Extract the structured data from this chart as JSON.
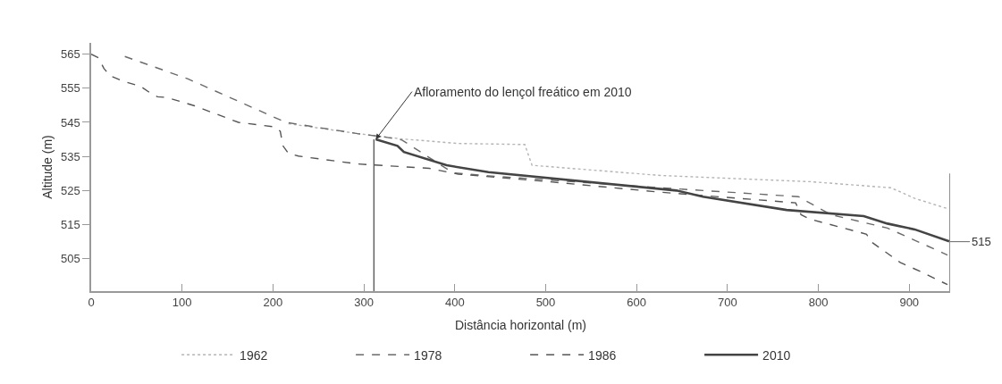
{
  "chart_data": {
    "type": "line",
    "xlabel": "Distância horizontal (m)",
    "ylabel": "Altitude (m)",
    "xlim": [
      0,
      945
    ],
    "xticks": [
      0,
      100,
      200,
      300,
      400,
      500,
      600,
      700,
      800,
      900
    ],
    "ylim": [
      495.5,
      568.3
    ],
    "yticks": [
      505,
      515,
      525,
      535,
      545,
      555,
      565
    ],
    "legend": "bottom",
    "marker": "none",
    "annotations": [
      {
        "text": "Afloramento do lençol freático em 2010",
        "x": 313,
        "y": 540
      },
      {
        "text": "515",
        "x": 945,
        "y": 510
      }
    ],
    "series": [
      {
        "name": "1962",
        "color": "#b4b4b4",
        "line_style": "dotted",
        "x": [
          217,
          293,
          339,
          404,
          477,
          485,
          627,
          791,
          880,
          906,
          942
        ],
        "values": [
          544.6,
          541.7,
          540.2,
          538.8,
          538.5,
          532.4,
          529.4,
          527.6,
          525.8,
          522.7,
          519.7
        ]
      },
      {
        "name": "1978",
        "color": "#6a6a6a",
        "line_style": "dashed",
        "x": [
          37,
          106,
          214,
          293,
          323,
          342,
          398,
          437,
          627,
          778,
          814,
          876,
          942
        ],
        "values": [
          564.3,
          557.8,
          545,
          541.7,
          540.7,
          539.8,
          530.2,
          529.3,
          525.8,
          523.2,
          517.9,
          514,
          506.1
        ]
      },
      {
        "name": "1986",
        "color": "#555555",
        "line_style": "dashed",
        "x": [
          0,
          8,
          14,
          21,
          37,
          54,
          64,
          73,
          83,
          113,
          162,
          201,
          208,
          211,
          217,
          228,
          293,
          372,
          404,
          503,
          627,
          775,
          781,
          791,
          853,
          858,
          890,
          912,
          942
        ],
        "values": [
          565,
          563.9,
          560.8,
          558.6,
          556.9,
          555.6,
          553.8,
          552.5,
          552.3,
          549.9,
          545,
          543.7,
          542.4,
          538.1,
          535.9,
          535.1,
          532.8,
          531.5,
          529.8,
          527.6,
          524.5,
          521.4,
          517.9,
          516.6,
          512.2,
          510,
          503.9,
          501.3,
          497.4
        ]
      },
      {
        "name": "2010",
        "color": "#444444",
        "line_style": "solid",
        "x": [
          313,
          337,
          344,
          391,
          437,
          644,
          673,
          765,
          850,
          876,
          906,
          944
        ],
        "values": [
          540,
          538.1,
          536.3,
          532.4,
          530.4,
          525,
          523.2,
          519.3,
          517.5,
          515.3,
          513.6,
          510.1
        ]
      },
      {
        "color": "#333333",
        "line_style": "solid",
        "x": [
          311,
          311
        ],
        "values": [
          495.5,
          540
        ]
      },
      {
        "color": "#333333",
        "line_style": "solid",
        "x": [
          945,
          945
        ],
        "values": [
          495.5,
          530
        ]
      }
    ]
  }
}
